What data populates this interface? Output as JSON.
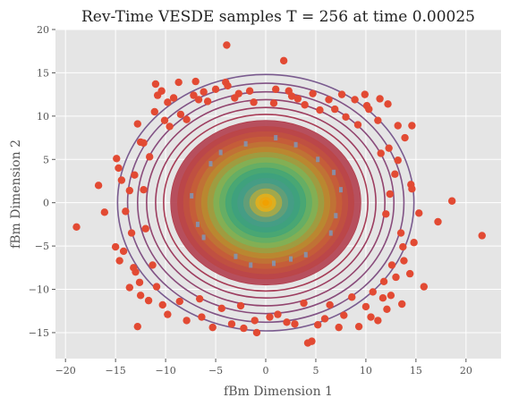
{
  "chart_data": {
    "type": "scatter",
    "title": "Rev-Time VESDE samples T = 256 at time 0.00025",
    "xlabel": "fBm Dimension 1",
    "ylabel": "fBm Dimension 2",
    "xlim": [
      -21,
      23.5
    ],
    "ylim": [
      -18,
      20
    ],
    "xticks": [
      -20,
      -15,
      -10,
      -5,
      0,
      5,
      10,
      15,
      20
    ],
    "yticks": [
      -15,
      -10,
      -5,
      0,
      5,
      10,
      15,
      20
    ],
    "grid": true,
    "background": "#e5e5e5",
    "contour_colormap": [
      "#7a5b8f",
      "#8a4a7a",
      "#a03a5a",
      "#b8404a",
      "#c65a3a",
      "#b98a30",
      "#7ab55a",
      "#3aa37a",
      "#4a9a8a",
      "#e0b020",
      "#f2a000"
    ],
    "contour_levels": [
      14.8,
      13.8,
      12.8,
      11.9,
      11.0,
      10.2,
      9.5,
      8.8,
      8.2,
      7.6,
      7.0,
      6.4,
      5.8,
      5.2,
      4.6,
      4.0,
      3.4,
      2.8,
      2.2,
      1.6,
      1.0,
      0.6,
      0.3
    ],
    "series": [
      {
        "marker_color": "#e24a33",
        "points": [
          [
            -3.9,
            18.2
          ],
          [
            1.8,
            16.4
          ],
          [
            -18.9,
            -2.8
          ],
          [
            21.6,
            -3.8
          ],
          [
            18.6,
            0.2
          ],
          [
            17.2,
            -2.2
          ],
          [
            -16.7,
            2.0
          ],
          [
            -16.1,
            -1.1
          ],
          [
            -14.9,
            5.1
          ],
          [
            -14.7,
            4.0
          ],
          [
            -15.0,
            -5.1
          ],
          [
            -14.6,
            -6.7
          ],
          [
            -14.2,
            -5.6
          ],
          [
            -13.6,
            -9.8
          ],
          [
            -12.5,
            -10.7
          ],
          [
            -11.7,
            -11.3
          ],
          [
            -12.2,
            6.9
          ],
          [
            -11.1,
            10.5
          ],
          [
            -10.8,
            12.4
          ],
          [
            -11.0,
            13.7
          ],
          [
            -10.4,
            12.9
          ],
          [
            -9.8,
            11.6
          ],
          [
            -8.7,
            13.9
          ],
          [
            -7.0,
            14.0
          ],
          [
            -6.2,
            12.8
          ],
          [
            -5.8,
            11.7
          ],
          [
            -5.0,
            13.1
          ],
          [
            -3.8,
            13.5
          ],
          [
            -2.7,
            12.6
          ],
          [
            -1.6,
            12.9
          ],
          [
            1.0,
            13.1
          ],
          [
            2.3,
            12.9
          ],
          [
            3.2,
            12.0
          ],
          [
            4.7,
            12.6
          ],
          [
            6.3,
            11.9
          ],
          [
            7.6,
            12.5
          ],
          [
            8.9,
            11.9
          ],
          [
            10.1,
            11.2
          ],
          [
            11.4,
            12.0
          ],
          [
            12.2,
            11.4
          ],
          [
            11.2,
            9.5
          ],
          [
            13.2,
            8.9
          ],
          [
            14.6,
            8.9
          ],
          [
            13.9,
            7.5
          ],
          [
            14.5,
            2.1
          ],
          [
            14.6,
            1.6
          ],
          [
            15.3,
            -1.2
          ],
          [
            15.8,
            -9.7
          ],
          [
            14.4,
            -8.2
          ],
          [
            12.5,
            -10.7
          ],
          [
            13.6,
            -11.7
          ],
          [
            12.1,
            -12.3
          ],
          [
            11.2,
            -13.6
          ],
          [
            10.5,
            -13.2
          ],
          [
            9.3,
            -14.3
          ],
          [
            7.3,
            -14.4
          ],
          [
            5.9,
            -13.4
          ],
          [
            4.6,
            -16.0
          ],
          [
            4.2,
            -16.2
          ],
          [
            2.9,
            -14.0
          ],
          [
            1.2,
            -12.9
          ],
          [
            0.4,
            -13.2
          ],
          [
            -1.1,
            -13.6
          ],
          [
            -2.2,
            -14.5
          ],
          [
            -3.4,
            -14.0
          ],
          [
            -5.3,
            -14.4
          ],
          [
            -6.4,
            -13.2
          ],
          [
            -7.9,
            -13.6
          ],
          [
            -9.8,
            -12.9
          ],
          [
            -12.8,
            -14.3
          ],
          [
            -10.3,
            -11.8
          ],
          [
            -10.9,
            -9.7
          ],
          [
            -13.0,
            -8.0
          ],
          [
            -13.4,
            -3.5
          ],
          [
            -13.6,
            1.4
          ],
          [
            -13.1,
            3.2
          ],
          [
            -12.5,
            7.0
          ],
          [
            -9.6,
            8.8
          ],
          [
            -8.5,
            10.2
          ],
          [
            -7.9,
            9.6
          ],
          [
            8.0,
            9.9
          ],
          [
            9.2,
            9.0
          ],
          [
            12.3,
            6.3
          ],
          [
            13.2,
            4.9
          ],
          [
            12.9,
            3.3
          ],
          [
            13.5,
            -3.5
          ],
          [
            13.7,
            -5.1
          ],
          [
            12.6,
            -7.2
          ],
          [
            11.8,
            -9.1
          ],
          [
            10.7,
            -10.3
          ],
          [
            -4.0,
            13.9
          ],
          [
            -1.2,
            11.6
          ],
          [
            0.8,
            11.5
          ],
          [
            3.9,
            11.3
          ],
          [
            5.4,
            10.7
          ],
          [
            6.9,
            10.8
          ],
          [
            -2.5,
            -11.9
          ],
          [
            3.8,
            -11.6
          ],
          [
            6.4,
            -11.8
          ],
          [
            8.6,
            -10.9
          ],
          [
            -6.6,
            -11.1
          ],
          [
            -8.6,
            -11.4
          ],
          [
            -11.3,
            -7.2
          ],
          [
            -12.0,
            -3.0
          ],
          [
            -12.2,
            1.5
          ],
          [
            -11.6,
            5.3
          ],
          [
            11.5,
            5.7
          ],
          [
            12.0,
            -1.3
          ],
          [
            12.4,
            1.0
          ],
          [
            -14.0,
            -1.0
          ],
          [
            -14.4,
            2.6
          ],
          [
            14.8,
            -4.6
          ],
          [
            13.8,
            -6.7
          ],
          [
            -6.7,
            11.9
          ],
          [
            -9.2,
            12.1
          ],
          [
            10.3,
            10.8
          ],
          [
            9.9,
            12.5
          ],
          [
            -12.8,
            9.1
          ],
          [
            11.7,
            -11.0
          ],
          [
            5.2,
            -14.1
          ],
          [
            -0.9,
            -15.0
          ],
          [
            -4.4,
            -12.2
          ],
          [
            2.1,
            -13.8
          ],
          [
            7.8,
            -13.0
          ],
          [
            -7.2,
            12.4
          ],
          [
            -10.1,
            9.5
          ],
          [
            -3.1,
            12.1
          ],
          [
            2.6,
            12.3
          ],
          [
            -13.2,
            -7.5
          ],
          [
            -12.6,
            -9.2
          ],
          [
            13.0,
            -8.6
          ],
          [
            10.0,
            -12.0
          ]
        ]
      },
      {
        "marker_color": "#7a9bbf",
        "points": [
          [
            1.0,
            7.5
          ],
          [
            -2.0,
            6.8
          ],
          [
            5.2,
            5.0
          ],
          [
            -5.5,
            4.5
          ],
          [
            6.5,
            -3.5
          ],
          [
            -6.2,
            -4.0
          ],
          [
            2.5,
            -6.5
          ],
          [
            -3.0,
            -6.2
          ],
          [
            7.5,
            1.5
          ],
          [
            -7.4,
            0.8
          ],
          [
            4.0,
            -6.0
          ],
          [
            -4.5,
            5.8
          ],
          [
            0.8,
            -7.0
          ],
          [
            6.8,
            3.5
          ],
          [
            -6.8,
            -2.5
          ],
          [
            3.0,
            6.7
          ],
          [
            -1.5,
            -7.2
          ],
          [
            7.0,
            -1.5
          ]
        ]
      }
    ]
  }
}
